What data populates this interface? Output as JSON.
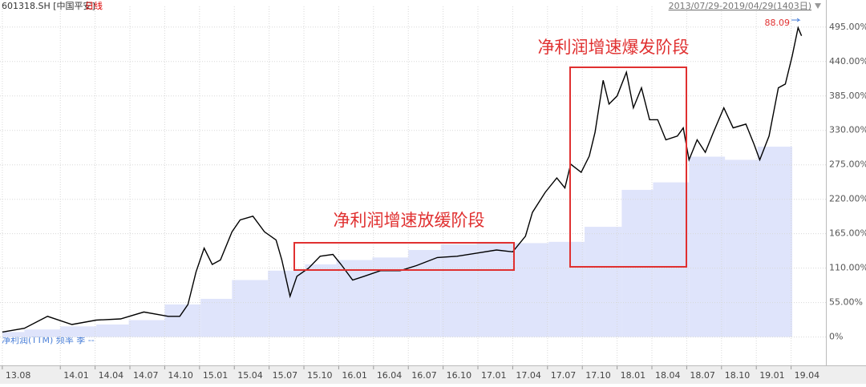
{
  "header": {
    "symbol": "601318.SH [中国平安]",
    "period": "日线",
    "range": "2013/07/29-2019/04/29(1403日)"
  },
  "chart_data": {
    "type": "line",
    "xlim": [
      -0.2,
      71
    ],
    "ylim": [
      -12,
      528
    ],
    "grid": true,
    "xticks": [
      {
        "value": 0,
        "label": "13.08"
      },
      {
        "value": 5,
        "label": "14.01"
      },
      {
        "value": 8,
        "label": "14.04"
      },
      {
        "value": 11,
        "label": "14.07"
      },
      {
        "value": 14,
        "label": "14.10"
      },
      {
        "value": 17,
        "label": "15.01"
      },
      {
        "value": 20,
        "label": "15.04"
      },
      {
        "value": 23,
        "label": "15.07"
      },
      {
        "value": 26,
        "label": "15.10"
      },
      {
        "value": 29,
        "label": "16.01"
      },
      {
        "value": 32,
        "label": "16.04"
      },
      {
        "value": 35,
        "label": "16.07"
      },
      {
        "value": 38,
        "label": "16.10"
      },
      {
        "value": 41,
        "label": "17.01"
      },
      {
        "value": 44,
        "label": "17.04"
      },
      {
        "value": 47,
        "label": "17.07"
      },
      {
        "value": 50,
        "label": "17.10"
      },
      {
        "value": 53,
        "label": "18.01"
      },
      {
        "value": 56,
        "label": "18.04"
      },
      {
        "value": 59,
        "label": "18.07"
      },
      {
        "value": 62,
        "label": "18.10"
      },
      {
        "value": 65,
        "label": "19.01"
      },
      {
        "value": 68,
        "label": "19.04"
      }
    ],
    "yticks": [
      {
        "value": 0,
        "label": "0%"
      },
      {
        "value": 55,
        "label": "55.00%"
      },
      {
        "value": 110,
        "label": "110.00%"
      },
      {
        "value": 165,
        "label": "165.00%"
      },
      {
        "value": 220,
        "label": "220.00%"
      },
      {
        "value": 275,
        "label": "275.00%"
      },
      {
        "value": 330,
        "label": "330.00%"
      },
      {
        "value": 385,
        "label": "385.00%"
      },
      {
        "value": 440,
        "label": "440.00%"
      },
      {
        "value": 495,
        "label": "495.00%"
      }
    ],
    "series": [
      {
        "color": "#000000",
        "x": [
          0,
          1.9,
          3.9,
          6,
          8.1,
          10.2,
          12.2,
          14.3,
          15.3,
          16,
          16.7,
          17.4,
          18.1,
          18.8,
          19.8,
          20.5,
          21.6,
          22.6,
          23.6,
          24.1,
          24.8,
          25.4,
          26.4,
          27.4,
          28.5,
          29.2,
          30.2,
          31.2,
          32.6,
          34.3,
          35.7,
          37.5,
          39.2,
          40.9,
          42.6,
          44,
          45.1,
          45.7,
          46.8,
          47.8,
          48.5,
          49,
          49.9,
          50.6,
          51.1,
          51.8,
          52.3,
          53,
          53.8,
          54.4,
          55.1,
          55.8,
          56.5,
          57.2,
          58.2,
          58.7,
          59.2,
          59.9,
          60.6,
          61.3,
          62.2,
          63,
          64.1,
          64.8,
          65.3,
          66.1,
          66.9,
          67.5,
          68.1,
          68.6,
          68.9
        ],
        "values": [
          8,
          14,
          33,
          20,
          27,
          29,
          40,
          33,
          33,
          52,
          104,
          142,
          116,
          123,
          168,
          187,
          193,
          168,
          155,
          123,
          65,
          97,
          110,
          129,
          132,
          116,
          91,
          97,
          106,
          106,
          114,
          127,
          129,
          134,
          139,
          136,
          161,
          199,
          231,
          254,
          238,
          276,
          263,
          289,
          327,
          410,
          372,
          385,
          423,
          366,
          398,
          347,
          347,
          315,
          321,
          334,
          283,
          315,
          295,
          327,
          366,
          334,
          340,
          308,
          283,
          321,
          398,
          404,
          449,
          494,
          481
        ]
      }
    ],
    "profit": {
      "name": "净利润(TTM) 频率 季 --",
      "color": "#dfe4fb",
      "edges": [
        0,
        1.9,
        5,
        8.1,
        10.9,
        14,
        17.1,
        19.8,
        22.9,
        26.1,
        28.8,
        31.9,
        35,
        37.8,
        40.9,
        44,
        47.1,
        50.2,
        53.4,
        56.1,
        59.2,
        62.3,
        65.1,
        68.1
      ],
      "values": [
        8,
        12,
        17,
        20,
        27,
        52,
        61,
        91,
        106,
        116,
        123,
        127,
        139,
        148,
        152,
        150,
        152,
        176,
        235,
        247,
        288,
        283,
        304
      ]
    },
    "price_label": "88.09",
    "annotations": [
      "净利润增速放缓阶段",
      "净利润增速爆发阶段"
    ]
  }
}
